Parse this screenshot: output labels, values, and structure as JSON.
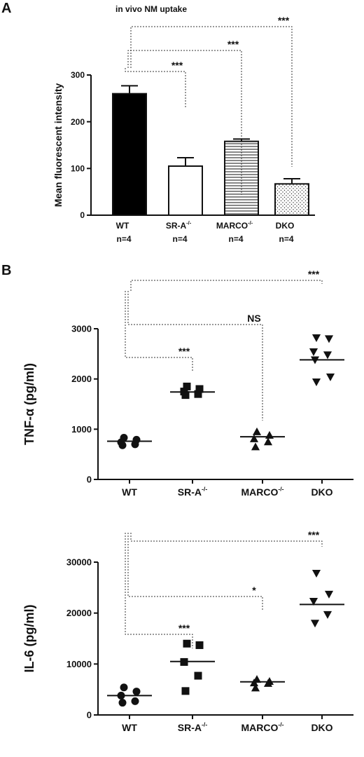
{
  "panels": {
    "a": {
      "letter": "A",
      "title": "in vivo NM uptake"
    },
    "b": {
      "letter": "B"
    }
  },
  "chart_data": [
    {
      "type": "bar",
      "title": "in vivo NM uptake",
      "ylabel": "Mean fluorescent intensity",
      "xlabel": "",
      "ylim": [
        0,
        300
      ],
      "yticks": [
        0,
        100,
        200,
        300
      ],
      "categories": [
        {
          "name": "WT",
          "sup": "",
          "n": "n=4",
          "fill": "solid"
        },
        {
          "name": "SR-A",
          "sup": "-/-",
          "n": "n=4",
          "fill": "white"
        },
        {
          "name": "MARCO",
          "sup": "-/-",
          "n": "n=4",
          "fill": "horizontal-lines"
        },
        {
          "name": "DKO",
          "sup": "",
          "n": "n=4",
          "fill": "dots"
        }
      ],
      "values": [
        260,
        105,
        158,
        67
      ],
      "errors": [
        17,
        18,
        5,
        11
      ],
      "comparisons": [
        {
          "from": 0,
          "to": 1,
          "label": "***"
        },
        {
          "from": 0,
          "to": 2,
          "label": "***"
        },
        {
          "from": 0,
          "to": 3,
          "label": "***"
        }
      ],
      "grid": false
    },
    {
      "type": "scatter",
      "ylabel": "TNF-α (pg/ml)",
      "xlabel": "",
      "ylim": [
        0,
        3000
      ],
      "yticks": [
        0,
        1000,
        2000,
        3000
      ],
      "categories": [
        {
          "name": "WT",
          "sup": ""
        },
        {
          "name": "SR-A",
          "sup": "-/-"
        },
        {
          "name": "MARCO",
          "sup": "-/-"
        },
        {
          "name": "DKO",
          "sup": ""
        }
      ],
      "markers": [
        "circle",
        "square",
        "triangle-up",
        "triangle-down"
      ],
      "points": [
        [
          830,
          790,
          740,
          700,
          680
        ],
        [
          1850,
          1800,
          1750,
          1700,
          1680
        ],
        [
          950,
          880,
          810,
          750,
          650
        ],
        [
          2820,
          2800,
          2540,
          2480,
          2380,
          2040,
          1940
        ]
      ],
      "means": [
        760,
        1740,
        850,
        2380
      ],
      "comparisons": [
        {
          "from": 0,
          "to": 1,
          "label": "***"
        },
        {
          "from": 0,
          "to": 2,
          "label": "NS"
        },
        {
          "from": 0,
          "to": 3,
          "label": "***"
        }
      ],
      "grid": false
    },
    {
      "type": "scatter",
      "ylabel": "IL-6 (pg/ml)",
      "xlabel": "",
      "ylim": [
        0,
        30000
      ],
      "yticks": [
        0,
        10000,
        20000,
        30000
      ],
      "categories": [
        {
          "name": "WT",
          "sup": ""
        },
        {
          "name": "SR-A",
          "sup": "-/-"
        },
        {
          "name": "MARCO",
          "sup": "-/-"
        },
        {
          "name": "DKO",
          "sup": ""
        }
      ],
      "markers": [
        "circle",
        "square",
        "triangle-up",
        "triangle-down"
      ],
      "points": [
        [
          5400,
          4600,
          3800,
          2700,
          2400
        ],
        [
          14000,
          13700,
          10400,
          7700,
          4700
        ],
        [
          7000,
          6600,
          6300,
          6200,
          5300
        ],
        [
          27800,
          23700,
          22300,
          19700,
          18000
        ]
      ],
      "means": [
        3800,
        10500,
        6500,
        21700
      ],
      "comparisons": [
        {
          "from": 0,
          "to": 1,
          "label": "***"
        },
        {
          "from": 0,
          "to": 2,
          "label": "*"
        },
        {
          "from": 0,
          "to": 3,
          "label": "***"
        }
      ],
      "grid": false
    }
  ]
}
